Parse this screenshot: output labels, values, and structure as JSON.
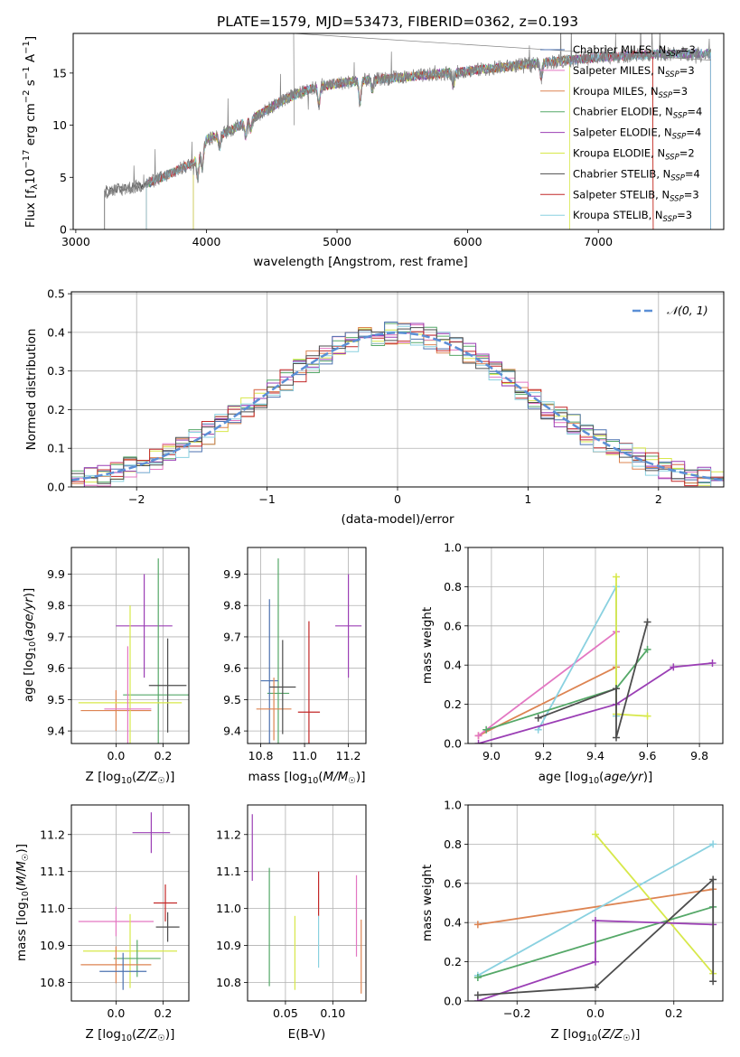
{
  "title": "PLATE=1579, MJD=53473, FIBERID=0362, z=0.193",
  "colors": {
    "Chabrier MILES": "#4c72b0",
    "Salpeter MILES": "#e377c2",
    "Kroupa MILES": "#dd8452",
    "Chabrier ELODIE": "#55a868",
    "Salpeter ELODIE": "#9b3fb5",
    "Kroupa ELODIE": "#d7e84a",
    "Chabrier STELIB": "#4d4d4d",
    "Salpeter STELIB": "#c22828",
    "Kroupa STELIB": "#8ad1e0",
    "gauss": "#5b8fd6"
  },
  "chart_data": [
    {
      "id": "spectrum",
      "type": "line",
      "title": "PLATE=1579, MJD=53473, FIBERID=0362, z=0.193",
      "xlabel": "wavelength [Angstrom, rest frame]",
      "ylabel": "Flux [f_λ 10^-17 erg cm^-2 s^-1 A^-1]",
      "xlim": [
        2980,
        7960
      ],
      "ylim": [
        0,
        18.8
      ],
      "xticks": [
        3000,
        4000,
        5000,
        6000,
        7000
      ],
      "yticks": [
        0,
        5,
        10,
        15
      ],
      "grid": false,
      "legend_position": "lower-right",
      "legend": [
        {
          "label": "Chabrier MILES, N",
          "sub": "SSP",
          "suffix": "=3"
        },
        {
          "label": "Salpeter MILES, N",
          "sub": "SSP",
          "suffix": "=3"
        },
        {
          "label": "Kroupa MILES, N",
          "sub": "SSP",
          "suffix": "=3"
        },
        {
          "label": "Chabrier ELODIE, N",
          "sub": "SSP",
          "suffix": "=4"
        },
        {
          "label": "Salpeter ELODIE, N",
          "sub": "SSP",
          "suffix": "=4"
        },
        {
          "label": "Kroupa ELODIE, N",
          "sub": "SSP",
          "suffix": "=2"
        },
        {
          "label": "Chabrier STELIB, N",
          "sub": "SSP",
          "suffix": "=4"
        },
        {
          "label": "Salpeter STELIB, N",
          "sub": "SSP",
          "suffix": "=3"
        },
        {
          "label": "Kroupa STELIB, N",
          "sub": "SSP",
          "suffix": "=3"
        }
      ],
      "continuum": [
        [
          3220,
          3.6
        ],
        [
          3500,
          4.2
        ],
        [
          3700,
          5.2
        ],
        [
          3900,
          6.4
        ],
        [
          4000,
          8.6
        ],
        [
          4200,
          9.6
        ],
        [
          4400,
          11.0
        ],
        [
          4600,
          12.5
        ],
        [
          4800,
          13.5
        ],
        [
          5000,
          14.0
        ],
        [
          5200,
          14.3
        ],
        [
          5600,
          14.7
        ],
        [
          6000,
          15.2
        ],
        [
          6500,
          15.9
        ],
        [
          7000,
          16.5
        ],
        [
          7400,
          16.8
        ],
        [
          7860,
          16.9
        ]
      ],
      "model_starts": {
        "Chabrier STELIB": 3220,
        "Kroupa MILES": 3540,
        "Chabrier MILES": 3540,
        "Kroupa ELODIE": 3900,
        "Salpeter ELODIE": 3900
      },
      "model_ends": {
        "Kroupa ELODIE": 6780,
        "Kroupa MILES": 7420,
        "Salpeter STELIB": 7420
      }
    },
    {
      "id": "residuals",
      "type": "histogram",
      "xlabel": "(data-model)/error",
      "ylabel": "Normed distribution",
      "xlim": [
        -2.5,
        2.5
      ],
      "ylim": [
        0,
        0.505
      ],
      "xticks": [
        -2,
        -1,
        0,
        1,
        2
      ],
      "yticks": [
        0.0,
        0.1,
        0.2,
        0.3,
        0.4,
        0.5
      ],
      "grid": true,
      "bin_width": 0.1,
      "legend_position": "top-right",
      "legend": [
        "𝒩(0, 1)"
      ]
    },
    {
      "id": "age_vs_Z",
      "type": "errorbar",
      "xlabel": "Z [log10(Z/Z☉)]",
      "ylabel": "age [log10(age/yr)]",
      "xlim": [
        -0.19,
        0.31
      ],
      "ylim": [
        9.36,
        9.985
      ],
      "xticks": [
        0.0,
        0.2
      ],
      "yticks": [
        9.4,
        9.5,
        9.6,
        9.7,
        9.8,
        9.9
      ],
      "grid": true,
      "points": [
        {
          "series": "Salpeter ELODIE",
          "x": 0.12,
          "xerr": 0.12,
          "y": 9.735,
          "yerr": 0.165
        },
        {
          "series": "Chabrier ELODIE",
          "x": 0.18,
          "xerr": 0.15,
          "y": 9.515,
          "yerr": 0.435
        },
        {
          "series": "Chabrier STELIB",
          "x": 0.22,
          "xerr": 0.08,
          "y": 9.545,
          "yerr": 0.15
        },
        {
          "series": "Kroupa MILES",
          "x": 0.0,
          "xerr": 0.15,
          "y": 9.465,
          "yerr": 0.065
        },
        {
          "series": "Kroupa ELODIE",
          "x": 0.06,
          "xerr": 0.22,
          "y": 9.49,
          "yerr": 0.31
        },
        {
          "series": "Salpeter MILES",
          "x": 0.05,
          "xerr": 0.1,
          "y": 9.47,
          "yerr": 0.2
        }
      ]
    },
    {
      "id": "age_vs_mass",
      "type": "errorbar",
      "xlabel": "mass [log10(M/M☉)]",
      "ylabel": "",
      "xlim": [
        10.74,
        11.28
      ],
      "ylim": [
        9.36,
        9.985
      ],
      "xticks": [
        10.8,
        11.0,
        11.2
      ],
      "yticks": [
        9.4,
        9.5,
        9.6,
        9.7,
        9.8,
        9.9
      ],
      "grid": true,
      "points": [
        {
          "series": "Salpeter ELODIE",
          "x": 11.2,
          "xerr": 0.06,
          "y": 9.735,
          "yerr": 0.165
        },
        {
          "series": "Chabrier ELODIE",
          "x": 10.88,
          "xerr": 0.05,
          "y": 9.52,
          "yerr": 0.43
        },
        {
          "series": "Salpeter STELIB",
          "x": 11.02,
          "xerr": 0.05,
          "y": 9.46,
          "yerr": 0.29
        },
        {
          "series": "Chabrier MILES",
          "x": 10.84,
          "xerr": 0.04,
          "y": 9.56,
          "yerr": 0.26
        },
        {
          "series": "Kroupa MILES",
          "x": 10.86,
          "xerr": 0.08,
          "y": 9.47,
          "yerr": 0.1
        },
        {
          "series": "Chabrier STELIB",
          "x": 10.9,
          "xerr": 0.06,
          "y": 9.54,
          "yerr": 0.15
        }
      ]
    },
    {
      "id": "mass_weight_vs_age",
      "type": "line",
      "xlabel": "age [log10(age/yr)]",
      "ylabel": "mass weight",
      "xlim": [
        8.91,
        9.89
      ],
      "ylim": [
        0,
        1.0
      ],
      "xticks": [
        9.0,
        9.2,
        9.4,
        9.6,
        9.8
      ],
      "yticks": [
        0.0,
        0.2,
        0.4,
        0.6,
        0.8,
        1.0
      ],
      "grid": true,
      "series": [
        {
          "name": "Kroupa MILES",
          "x": [
            8.95,
            9.48
          ],
          "y": [
            0.04,
            0.39
          ]
        },
        {
          "name": "Salpeter MILES",
          "x": [
            8.95,
            9.48
          ],
          "y": [
            0.04,
            0.57
          ]
        },
        {
          "name": "Kroupa STELIB",
          "x": [
            9.18,
            9.48,
            9.48
          ],
          "y": [
            0.07,
            0.8,
            0.14
          ]
        },
        {
          "name": "Kroupa ELODIE",
          "x": [
            9.48,
            9.48,
            9.6
          ],
          "y": [
            0.85,
            0.15,
            0.14
          ]
        },
        {
          "name": "Salpeter ELODIE",
          "x": [
            8.95,
            9.48,
            9.7,
            9.85
          ],
          "y": [
            0.0,
            0.2,
            0.39,
            0.41
          ]
        },
        {
          "name": "Chabrier ELODIE",
          "x": [
            8.98,
            9.48,
            9.6
          ],
          "y": [
            0.07,
            0.28,
            0.48
          ]
        },
        {
          "name": "Chabrier STELIB",
          "x": [
            9.18,
            9.48,
            9.48,
            9.6
          ],
          "y": [
            0.13,
            0.28,
            0.03,
            0.62
          ]
        }
      ]
    },
    {
      "id": "mass_vs_Z",
      "type": "errorbar",
      "xlabel": "Z [log10(Z/Z☉)]",
      "ylabel": "mass [log10(M/M☉)]",
      "xlim": [
        -0.19,
        0.31
      ],
      "ylim": [
        10.75,
        11.28
      ],
      "xticks": [
        0.0,
        0.2
      ],
      "yticks": [
        10.8,
        10.9,
        11.0,
        11.1,
        11.2
      ],
      "grid": true,
      "points": [
        {
          "series": "Salpeter ELODIE",
          "x": 0.15,
          "xerr": 0.08,
          "y": 11.205,
          "yerr": 0.055
        },
        {
          "series": "Salpeter STELIB",
          "x": 0.21,
          "xerr": 0.05,
          "y": 11.015,
          "yerr": 0.05
        },
        {
          "series": "Salpeter MILES",
          "x": 0.0,
          "xerr": 0.16,
          "y": 10.965,
          "yerr": 0.04
        },
        {
          "series": "Chabrier STELIB",
          "x": 0.22,
          "xerr": 0.05,
          "y": 10.95,
          "yerr": 0.04
        },
        {
          "series": "Kroupa ELODIE",
          "x": 0.06,
          "xerr": 0.2,
          "y": 10.885,
          "yerr": 0.1
        },
        {
          "series": "Chabrier ELODIE",
          "x": 0.09,
          "xerr": 0.1,
          "y": 10.865,
          "yerr": 0.05
        },
        {
          "series": "Kroupa MILES",
          "x": 0.0,
          "xerr": 0.15,
          "y": 10.848,
          "yerr": 0.05
        },
        {
          "series": "Chabrier MILES",
          "x": 0.03,
          "xerr": 0.1,
          "y": 10.83,
          "yerr": 0.05
        }
      ]
    },
    {
      "id": "mass_vs_ebv",
      "type": "errorbar",
      "xlabel": "E(B-V)",
      "ylabel": "",
      "xlim": [
        0.01,
        0.135
      ],
      "ylim": [
        10.75,
        11.28
      ],
      "xticks": [
        0.05,
        0.1
      ],
      "yticks": [
        10.8,
        10.9,
        11.0,
        11.1,
        11.2
      ],
      "grid": true,
      "points": [
        {
          "series": "Salpeter ELODIE",
          "x": 0.015,
          "y": 11.165,
          "yerr": 0.09
        },
        {
          "series": "Chabrier ELODIE",
          "x": 0.033,
          "y": 10.95,
          "yerr": 0.16
        },
        {
          "series": "Kroupa ELODIE",
          "x": 0.06,
          "y": 10.88,
          "yerr": 0.1
        },
        {
          "series": "Salpeter STELIB",
          "x": 0.085,
          "y": 11.04,
          "yerr": 0.06
        },
        {
          "series": "Kroupa STELIB",
          "x": 0.085,
          "y": 10.91,
          "yerr": 0.07
        },
        {
          "series": "Salpeter MILES",
          "x": 0.125,
          "y": 10.98,
          "yerr": 0.11
        },
        {
          "series": "Kroupa MILES",
          "x": 0.13,
          "y": 10.87,
          "yerr": 0.1
        }
      ]
    },
    {
      "id": "mass_weight_vs_Z",
      "type": "line",
      "xlabel": "Z [log10(Z/Z☉)]",
      "ylabel": "mass weight",
      "xlim": [
        -0.325,
        0.325
      ],
      "ylim": [
        0,
        1.0
      ],
      "xticks": [
        -0.2,
        0.0,
        0.2
      ],
      "yticks": [
        0.0,
        0.2,
        0.4,
        0.6,
        0.8,
        1.0
      ],
      "grid": true,
      "series": [
        {
          "name": "Kroupa MILES",
          "x": [
            -0.3,
            0.3
          ],
          "y": [
            0.39,
            0.57
          ]
        },
        {
          "name": "Kroupa STELIB",
          "x": [
            -0.3,
            0.3
          ],
          "y": [
            0.13,
            0.8
          ]
        },
        {
          "name": "Chabrier ELODIE",
          "x": [
            -0.3,
            0.3
          ],
          "y": [
            0.12,
            0.48
          ]
        },
        {
          "name": "Kroupa ELODIE",
          "x": [
            0.0,
            0.3
          ],
          "y": [
            0.85,
            0.14
          ]
        },
        {
          "name": "Salpeter ELODIE",
          "x": [
            -0.3,
            0.0,
            0.0,
            0.3
          ],
          "y": [
            0.0,
            0.2,
            0.41,
            0.39
          ]
        },
        {
          "name": "Chabrier STELIB",
          "x": [
            -0.3,
            0.0,
            0.3,
            0.3
          ],
          "y": [
            0.03,
            0.07,
            0.62,
            0.1
          ]
        }
      ]
    }
  ]
}
